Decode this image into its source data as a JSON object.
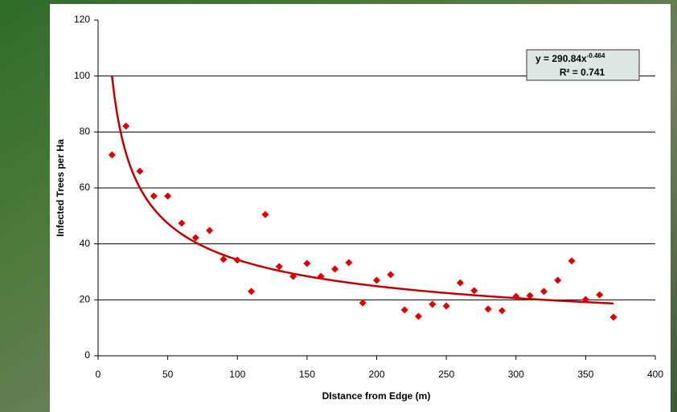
{
  "chart_data": {
    "type": "scatter",
    "x_label": "DIstance from Edge (m)",
    "y_label": "Infected Trees per Ha",
    "x": [
      10,
      20,
      30,
      40,
      50,
      60,
      70,
      80,
      90,
      100,
      110,
      120,
      130,
      140,
      150,
      160,
      170,
      180,
      190,
      200,
      210,
      220,
      230,
      240,
      250,
      260,
      270,
      280,
      290,
      300,
      310,
      320,
      330,
      340,
      350,
      360,
      370
    ],
    "values": [
      71.8,
      82.1,
      66.0,
      57.1,
      57.1,
      47.4,
      42.2,
      44.8,
      34.5,
      34.2,
      23.0,
      50.5,
      31.9,
      28.4,
      33.0,
      28.4,
      31.0,
      33.3,
      18.9,
      27.0,
      29.0,
      16.4,
      14.1,
      18.4,
      17.8,
      26.1,
      23.3,
      16.7,
      16.1,
      21.2,
      21.5,
      23.0,
      27.0,
      33.9,
      20.1,
      21.8,
      13.8
    ],
    "color": "#e00000",
    "trendline": {
      "type": "power",
      "coefficient": 290.84,
      "exponent": -0.464,
      "xrange": [
        10,
        370
      ],
      "color": "#c00000",
      "equation_label": "y = 290.84x",
      "exponent_label": "-0.464",
      "r2_label": "R² = 0.741"
    },
    "xlim": [
      0,
      400
    ],
    "xticks": [
      0,
      50,
      100,
      150,
      200,
      250,
      300,
      350,
      400
    ],
    "ylim": [
      0,
      120
    ],
    "yticks": [
      0,
      20,
      40,
      60,
      80,
      100,
      120
    ],
    "grid": true
  }
}
